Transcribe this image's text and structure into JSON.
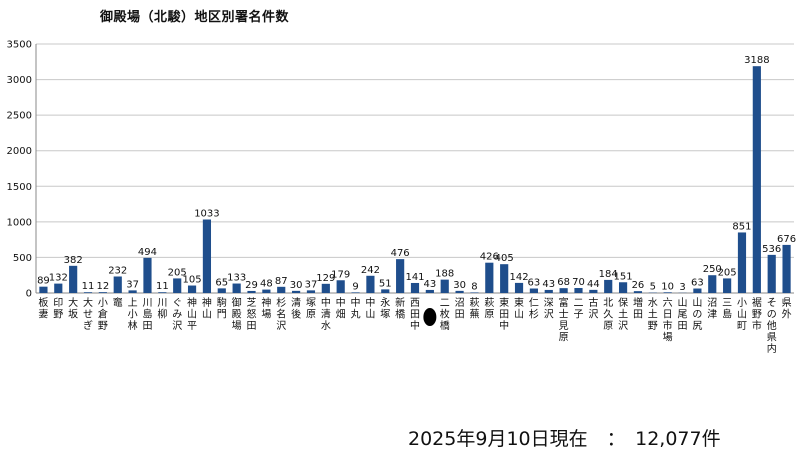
{
  "chart_data": {
    "type": "bar",
    "title": "御殿場（北駿）地区別署名件数",
    "ylim": [
      0,
      3500
    ],
    "yticks": [
      0,
      500,
      1000,
      1500,
      2000,
      2500,
      3000,
      3500
    ],
    "grid": true,
    "legend": "none",
    "bar_color": "#1f4e8c",
    "redacted_color": "#000000",
    "categories": [
      "板妻",
      "印野",
      "大坂",
      "大せぎ",
      "小倉野",
      "竈",
      "上小林",
      "川島田",
      "川柳",
      "ぐみ沢",
      "神山平",
      "神山",
      "駒門",
      "御殿場",
      "芝怒田",
      "神場",
      "杉名沢",
      "清後",
      "塚原",
      "中清水",
      "中畑",
      "中丸",
      "中山",
      "永塚",
      "新橋",
      "西田中",
      "●",
      "二枚橋",
      "沼田",
      "萩蕪",
      "萩原",
      "東田中",
      "東山",
      "仁杉",
      "深沢",
      "富士見原",
      "二子",
      "古沢",
      "北久原",
      "保土沢",
      "増田",
      "水土野",
      "六日市場",
      "山尾田",
      "山の尻",
      "沼津",
      "三島",
      "小山町",
      "裾野市",
      "その他県内",
      "県外"
    ],
    "values": [
      89,
      132,
      382,
      11,
      12,
      232,
      37,
      494,
      11,
      205,
      105,
      1033,
      65,
      133,
      29,
      48,
      87,
      30,
      37,
      129,
      179,
      9,
      242,
      51,
      476,
      141,
      43,
      188,
      30,
      8,
      426,
      405,
      142,
      63,
      43,
      68,
      70,
      44,
      184,
      151,
      26,
      5,
      10,
      3,
      63,
      250,
      205,
      851,
      3188,
      536,
      676
    ],
    "value_labels": [
      "89",
      "132",
      "382",
      "11",
      "12",
      "232",
      "37",
      "494",
      "11",
      "205",
      "105",
      "1033",
      "65",
      "133",
      "29",
      "48",
      "87",
      "30",
      "37",
      "129",
      "179",
      "9",
      "242",
      "51",
      "476",
      "141",
      "43",
      "188",
      "30",
      "8",
      "426",
      "405",
      "142",
      "63",
      "43",
      "68",
      "70",
      "44",
      "184",
      "151",
      "26",
      "5",
      "10",
      "3",
      "63",
      "250",
      "205",
      "851",
      "3188",
      "536",
      "676"
    ]
  },
  "footer": {
    "note": "2025年9月10日現在　：　12,077件"
  }
}
